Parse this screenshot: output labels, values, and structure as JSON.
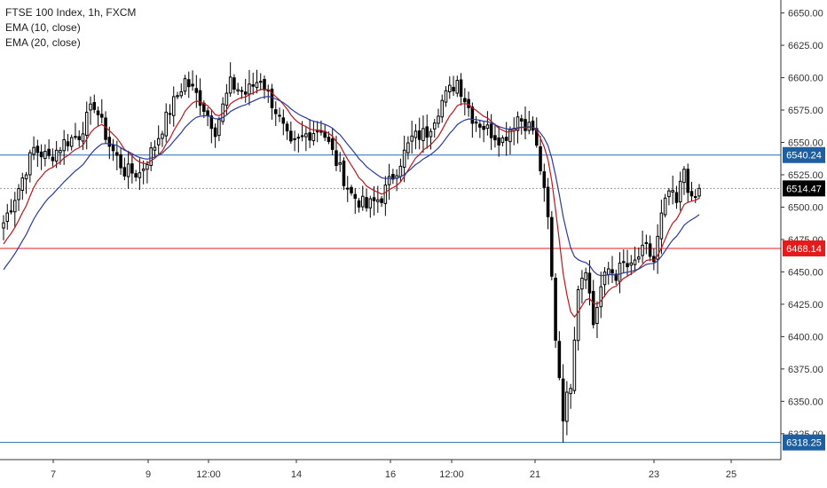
{
  "legend": {
    "symbol": "FTSE 100 Index, 1h, FXCM",
    "ema1": "EMA (10, close)",
    "ema2": "EMA (20, close)"
  },
  "colors": {
    "up": "#ffffff",
    "down": "#000000",
    "ema10": "#c0151c",
    "ema20": "#2a3a9c",
    "hline_blue": "#2a6cad",
    "hline_red": "#e51b1b",
    "price_line": "#9e9e9e"
  },
  "chart_data": {
    "type": "candlestick",
    "ylim": [
      6305,
      6660
    ],
    "y_ticks": [
      "6650.00",
      "6625.00",
      "6600.00",
      "6575.00",
      "6550.00",
      "6525.00",
      "6500.00",
      "6475.00",
      "6450.00",
      "6425.00",
      "6400.00",
      "6375.00",
      "6350.00",
      "6325.00"
    ],
    "x_ticks": [
      "7",
      "9",
      "12:00",
      "14",
      "16",
      "12:00",
      "21",
      "23",
      "25"
    ],
    "price_labels": [
      {
        "value": 6540.24,
        "text": "6540.24",
        "style": "blue"
      },
      {
        "value": 6514.47,
        "text": "6514.47",
        "style": "black"
      },
      {
        "value": 6468.14,
        "text": "6468.14",
        "style": "red"
      },
      {
        "value": 6318.25,
        "text": "6318.25",
        "style": "blue"
      }
    ],
    "hlines": [
      {
        "value": 6540.24,
        "color": "blue"
      },
      {
        "value": 6468.14,
        "color": "red"
      },
      {
        "value": 6318.25,
        "color": "blue"
      }
    ],
    "current_price": 6514.47,
    "anchors": [
      [
        0,
        6488
      ],
      [
        4,
        6515
      ],
      [
        8,
        6545
      ],
      [
        12,
        6538
      ],
      [
        16,
        6550
      ],
      [
        20,
        6556
      ],
      [
        24,
        6580
      ],
      [
        28,
        6548
      ],
      [
        32,
        6528
      ],
      [
        36,
        6526
      ],
      [
        40,
        6548
      ],
      [
        44,
        6575
      ],
      [
        48,
        6598
      ],
      [
        52,
        6583
      ],
      [
        56,
        6560
      ],
      [
        60,
        6595
      ],
      [
        64,
        6588
      ],
      [
        68,
        6600
      ],
      [
        72,
        6575
      ],
      [
        76,
        6546
      ],
      [
        80,
        6556
      ],
      [
        84,
        6562
      ],
      [
        88,
        6535
      ],
      [
        92,
        6510
      ],
      [
        96,
        6500
      ],
      [
        100,
        6508
      ],
      [
        104,
        6530
      ],
      [
        108,
        6553
      ],
      [
        112,
        6558
      ],
      [
        116,
        6582
      ],
      [
        120,
        6598
      ],
      [
        124,
        6570
      ],
      [
        128,
        6560
      ],
      [
        132,
        6552
      ],
      [
        136,
        6570
      ],
      [
        140,
        6560
      ],
      [
        142,
        6530
      ],
      [
        144,
        6490
      ],
      [
        146,
        6400
      ],
      [
        148,
        6340
      ],
      [
        150,
        6365
      ],
      [
        152,
        6440
      ],
      [
        154,
        6455
      ],
      [
        156,
        6410
      ],
      [
        158,
        6438
      ],
      [
        160,
        6452
      ],
      [
        162,
        6448
      ],
      [
        164,
        6456
      ],
      [
        166,
        6452
      ],
      [
        168,
        6462
      ],
      [
        170,
        6468
      ],
      [
        172,
        6458
      ],
      [
        174,
        6492
      ],
      [
        176,
        6512
      ],
      [
        178,
        6502
      ],
      [
        180,
        6530
      ],
      [
        182,
        6503
      ],
      [
        184,
        6512
      ]
    ]
  }
}
